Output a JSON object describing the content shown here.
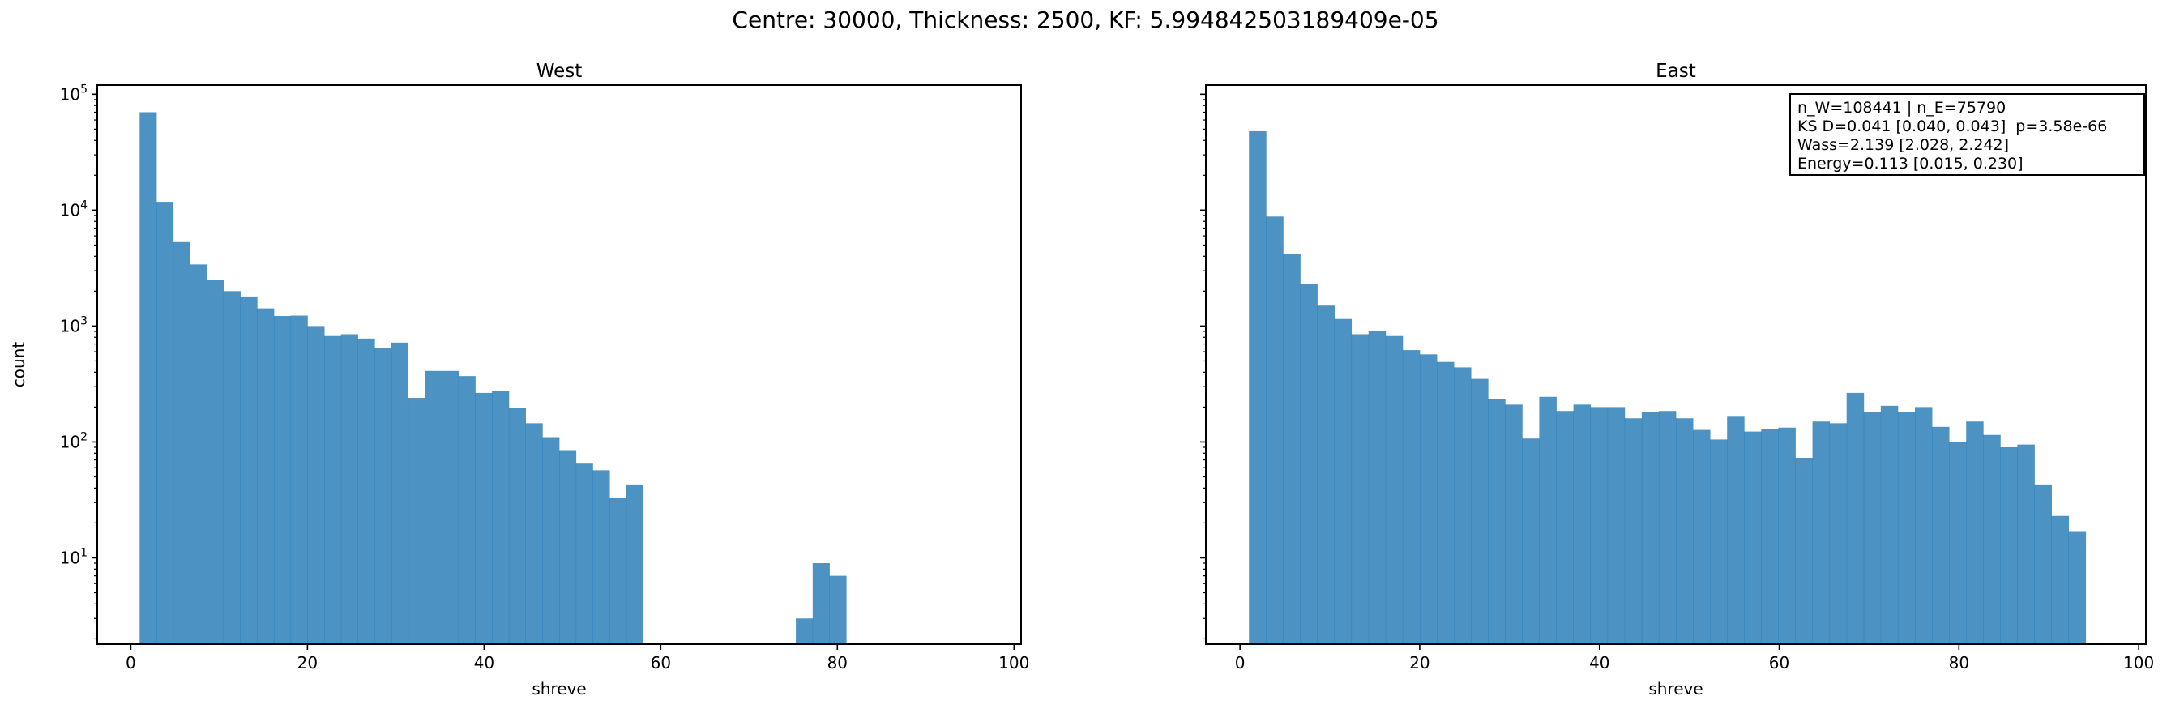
{
  "figure": {
    "suptitle": "Centre: 30000, Thickness: 2500, KF: 5.994842503189409e-05",
    "stats_box": {
      "lines": [
        "n_W=108441 | n_E=75790",
        "KS D=0.041 [0.040, 0.043]  p=3.58e-66",
        "Wass=2.139 [2.028, 2.242]",
        "Energy=0.113 [0.015, 0.230]"
      ]
    }
  },
  "colors": {
    "bar": "#1f77b4",
    "bar_opacity": 0.8
  },
  "chart_data": [
    {
      "type": "bar",
      "title": "West",
      "xlabel": "shreve",
      "ylabel": "count",
      "yscale": "log",
      "xlim": [
        -3.8,
        100.8
      ],
      "ylim": [
        1.8,
        120000
      ],
      "xticks": [
        0,
        20,
        40,
        60,
        80,
        100
      ],
      "yticks": [
        {
          "value": 10,
          "exp": "1"
        },
        {
          "value": 100,
          "exp": "2"
        },
        {
          "value": 1000,
          "exp": "3"
        },
        {
          "value": 10000,
          "exp": "4"
        },
        {
          "value": 100000,
          "exp": "5"
        }
      ],
      "bin_width": 1.9,
      "bin_start": 1,
      "values": [
        70000,
        11800,
        5300,
        3400,
        2500,
        2000,
        1800,
        1420,
        1220,
        1230,
        1000,
        820,
        850,
        780,
        650,
        720,
        240,
        410,
        410,
        370,
        265,
        275,
        195,
        145,
        110,
        85,
        65,
        57,
        33,
        43,
        0,
        0,
        0,
        0,
        0,
        0,
        0,
        0,
        0,
        0,
        0,
        0,
        0,
        0,
        0,
        0,
        0,
        0,
        0,
        0,
        0,
        0,
        0,
        0,
        0,
        0,
        0,
        0,
        0,
        0,
        0
      ],
      "extra_bars": [
        {
          "x": 75.3,
          "value": 3
        },
        {
          "x": 77.2,
          "value": 9
        },
        {
          "x": 79.1,
          "value": 7
        }
      ],
      "grid": false
    },
    {
      "type": "bar",
      "title": "East",
      "xlabel": "shreve",
      "ylabel": "",
      "yscale": "log",
      "xlim": [
        -3.8,
        100.8
      ],
      "ylim": [
        1.8,
        120000
      ],
      "xticks": [
        0,
        20,
        40,
        60,
        80,
        100
      ],
      "bin_width": 1.9,
      "bin_start": 1,
      "values": [
        48000,
        8800,
        4200,
        2300,
        1500,
        1150,
        850,
        900,
        820,
        620,
        570,
        490,
        440,
        350,
        235,
        210,
        107,
        245,
        185,
        210,
        200,
        200,
        160,
        180,
        185,
        160,
        127,
        105,
        165,
        123,
        130,
        133,
        73,
        150,
        145,
        265,
        180,
        205,
        180,
        200,
        135,
        100,
        150,
        115,
        90,
        95,
        43,
        23,
        17
      ],
      "grid": false
    }
  ]
}
